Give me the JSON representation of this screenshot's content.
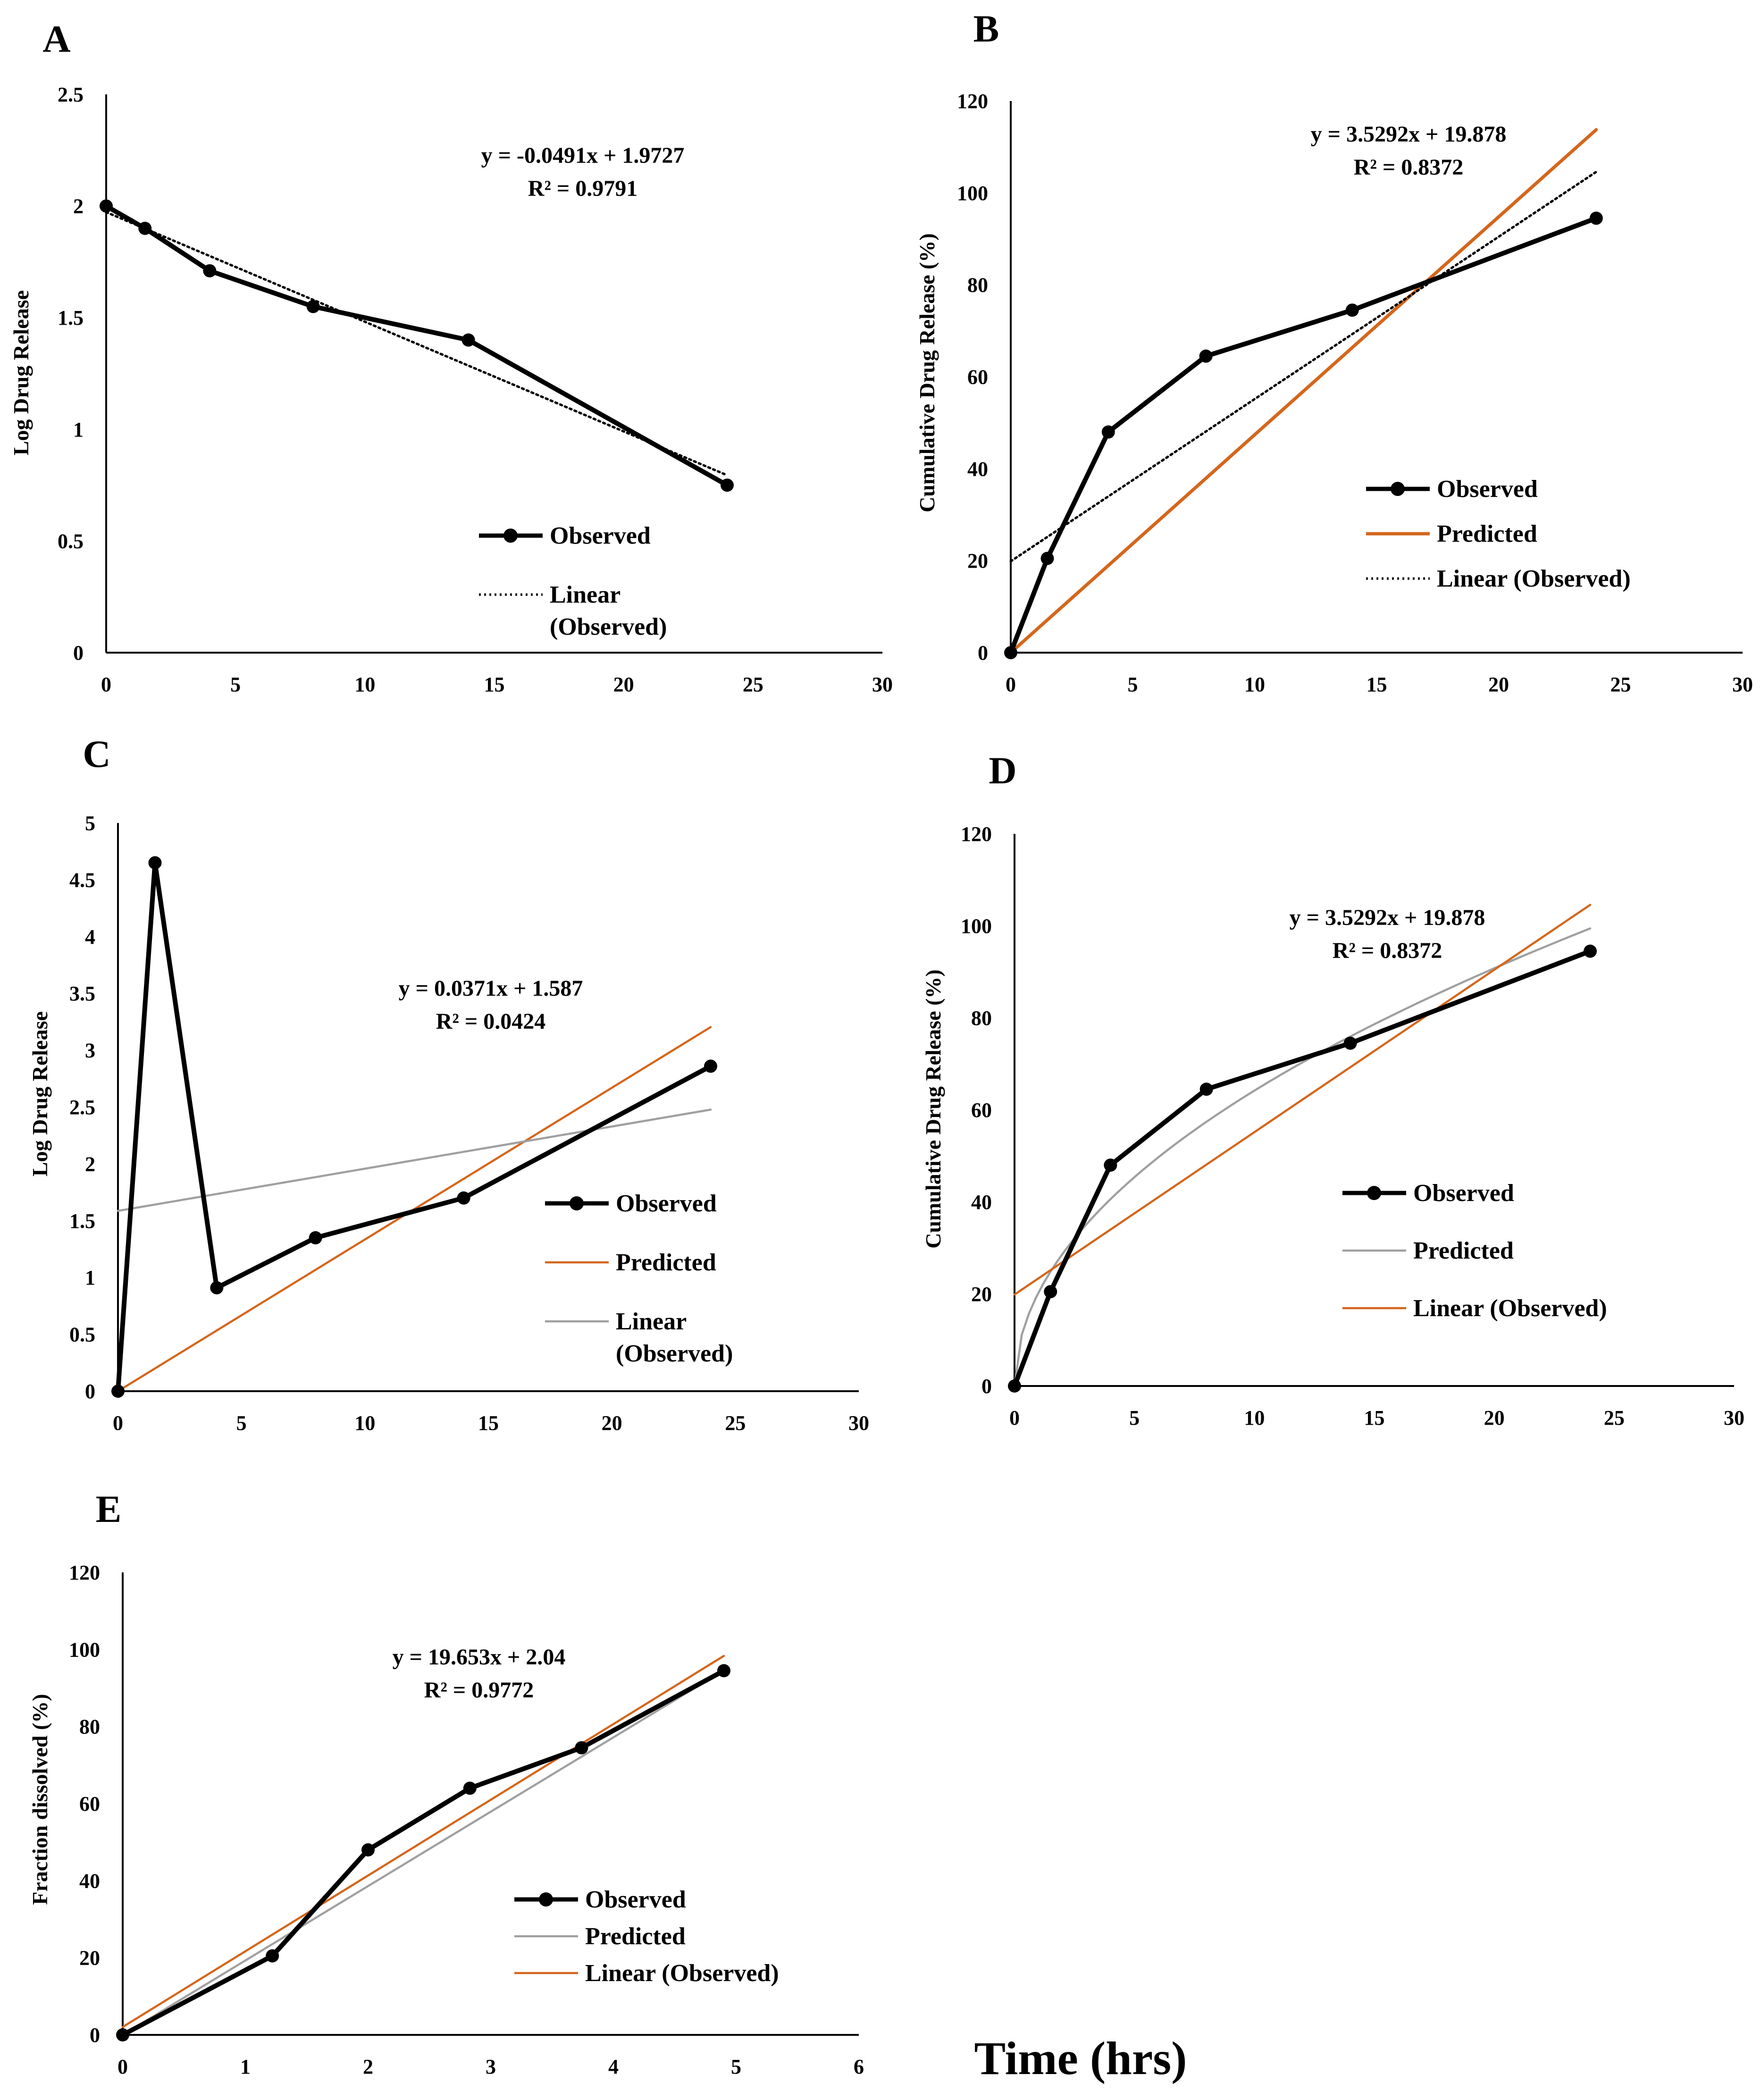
{
  "figure": {
    "x_title": "Time (hrs)"
  },
  "chart_data": [
    {
      "id": "A",
      "type": "line",
      "panel_label": "A",
      "xlabel": "",
      "ylabel": "Log Drug Release",
      "xlim": [
        0,
        30
      ],
      "ylim": [
        0,
        2.5
      ],
      "xticks": [
        "0",
        "5",
        "10",
        "15",
        "20",
        "25",
        "30"
      ],
      "yticks": [
        "0",
        "0.5",
        "1",
        "1.5",
        "2",
        "2.5"
      ],
      "equation": [
        "y = -0.0491x + 1.9727",
        "R² = 0.9791"
      ],
      "series": [
        {
          "name": "Observed",
          "role": "observed",
          "color": "#000000",
          "x": [
            0,
            1.5,
            4,
            8,
            14,
            24
          ],
          "y": [
            2.0,
            1.9,
            1.71,
            1.55,
            1.4,
            0.75
          ]
        },
        {
          "name": "Linear (Observed)",
          "role": "trend",
          "kind": "linear",
          "color": "#000000",
          "dash": true,
          "slope": -0.0491,
          "intercept": 1.9727,
          "xrange": [
            0,
            24
          ]
        }
      ],
      "legend": [
        {
          "label": "Observed",
          "style": "observed"
        },
        {
          "label": "Linear",
          "label2": "(Observed)",
          "style": "dotted"
        }
      ]
    },
    {
      "id": "B",
      "type": "line",
      "panel_label": "B",
      "xlabel": "",
      "ylabel": "Cumulative Drug Release (%)",
      "xlim": [
        0,
        30
      ],
      "ylim": [
        0,
        120
      ],
      "xticks": [
        "0",
        "5",
        "10",
        "15",
        "20",
        "25",
        "30"
      ],
      "yticks": [
        "0",
        "20",
        "40",
        "60",
        "80",
        "100",
        "120"
      ],
      "equation": [
        "y = 3.5292x + 19.878",
        "R² = 0.8372"
      ],
      "series": [
        {
          "name": "Observed",
          "role": "observed",
          "color": "#000000",
          "x": [
            0,
            1.5,
            4,
            8,
            14,
            24
          ],
          "y": [
            0,
            20.5,
            48,
            64.5,
            74.5,
            94.5
          ]
        },
        {
          "name": "Predicted",
          "role": "predicted",
          "kind": "linear",
          "color": "#D4661C",
          "slope": 4.74,
          "intercept": 0,
          "xrange": [
            0,
            24
          ]
        },
        {
          "name": "Linear (Observed)",
          "role": "trend",
          "kind": "linear",
          "color": "#000000",
          "dash": true,
          "slope": 3.5292,
          "intercept": 19.878,
          "xrange": [
            0,
            24
          ]
        }
      ],
      "legend": [
        {
          "label": "Observed",
          "style": "observed"
        },
        {
          "label": "Predicted",
          "style": "orange"
        },
        {
          "label": "Linear (Observed)",
          "style": "dotted"
        }
      ]
    },
    {
      "id": "C",
      "type": "line",
      "panel_label": "C",
      "xlabel": "",
      "ylabel": "Log Drug Release",
      "xlim": [
        0,
        30
      ],
      "ylim": [
        0,
        5
      ],
      "xticks": [
        "0",
        "5",
        "10",
        "15",
        "20",
        "25",
        "30"
      ],
      "yticks": [
        "0",
        "0.5",
        "1",
        "1.5",
        "2",
        "2.5",
        "3",
        "3.5",
        "4",
        "4.5",
        "5"
      ],
      "equation": [
        "y = 0.0371x + 1.587",
        "R² = 0.0424"
      ],
      "series": [
        {
          "name": "Observed",
          "role": "observed",
          "color": "#000000",
          "x": [
            0,
            1.5,
            4,
            8,
            14,
            24
          ],
          "y": [
            0,
            4.65,
            0.91,
            1.35,
            1.7,
            2.86
          ]
        },
        {
          "name": "Predicted",
          "role": "predicted",
          "kind": "linear",
          "color": "#D4661C",
          "slope": 0.1335,
          "intercept": 0,
          "xrange": [
            0,
            24
          ]
        },
        {
          "name": "Linear (Observed)",
          "role": "trend",
          "kind": "linear",
          "color": "#A0A0A0",
          "slope": 0.0371,
          "intercept": 1.587,
          "xrange": [
            0,
            24
          ]
        }
      ],
      "legend": [
        {
          "label": "Observed",
          "style": "observed"
        },
        {
          "label": "Predicted",
          "style": "orange-thin"
        },
        {
          "label": "Linear",
          "label2": "(Observed)",
          "style": "gray"
        }
      ]
    },
    {
      "id": "D",
      "type": "line",
      "panel_label": "D",
      "xlabel": "",
      "ylabel": "Cumulative Drug Release (%)",
      "xlim": [
        0,
        30
      ],
      "ylim": [
        0,
        120
      ],
      "xticks": [
        "0",
        "5",
        "10",
        "15",
        "20",
        "25",
        "30"
      ],
      "yticks": [
        "0",
        "20",
        "40",
        "60",
        "80",
        "100",
        "120"
      ],
      "equation": [
        "y = 3.5292x + 19.878",
        "R² = 0.8372"
      ],
      "series": [
        {
          "name": "Observed",
          "role": "observed",
          "color": "#000000",
          "x": [
            0,
            1.5,
            4,
            8,
            14,
            24
          ],
          "y": [
            0,
            20.5,
            48,
            64.5,
            74.5,
            94.5
          ]
        },
        {
          "name": "Predicted",
          "role": "predicted",
          "kind": "sqrt",
          "color": "#A0A0A0",
          "k": 20.3,
          "xrange": [
            0,
            24
          ]
        },
        {
          "name": "Linear (Observed)",
          "role": "trend",
          "kind": "linear",
          "color": "#D4661C",
          "slope": 3.5292,
          "intercept": 19.878,
          "xrange": [
            0,
            24
          ]
        }
      ],
      "legend": [
        {
          "label": "Observed",
          "style": "observed"
        },
        {
          "label": "Predicted",
          "style": "gray"
        },
        {
          "label": "Linear (Observed)",
          "style": "orange-thin"
        }
      ]
    },
    {
      "id": "E",
      "type": "line",
      "panel_label": "E",
      "xlabel": "",
      "ylabel": "Fraction dissolved (%)",
      "xlim": [
        0,
        6
      ],
      "ylim": [
        0,
        120
      ],
      "xticks": [
        "0",
        "1",
        "2",
        "3",
        "4",
        "5",
        "6"
      ],
      "yticks": [
        "0",
        "20",
        "40",
        "60",
        "80",
        "100",
        "120"
      ],
      "equation": [
        "y = 19.653x + 2.04",
        "R² = 0.9772"
      ],
      "series": [
        {
          "name": "Observed",
          "role": "observed",
          "color": "#000000",
          "x": [
            0,
            1.22,
            2.0,
            2.83,
            3.74,
            4.9
          ],
          "y": [
            0,
            20.5,
            48,
            64,
            74.5,
            94.5
          ]
        },
        {
          "name": "Predicted",
          "role": "predicted",
          "kind": "linear",
          "color": "#A0A0A0",
          "slope": 19.3,
          "intercept": 0,
          "xrange": [
            0,
            4.9
          ]
        },
        {
          "name": "Linear (Observed)",
          "role": "trend",
          "kind": "linear",
          "color": "#D4661C",
          "slope": 19.653,
          "intercept": 2.04,
          "xrange": [
            0,
            4.9
          ]
        }
      ],
      "legend": [
        {
          "label": "Observed",
          "style": "observed"
        },
        {
          "label": "Predicted",
          "style": "gray"
        },
        {
          "label": "Linear (Observed)",
          "style": "orange-thin"
        }
      ]
    }
  ]
}
